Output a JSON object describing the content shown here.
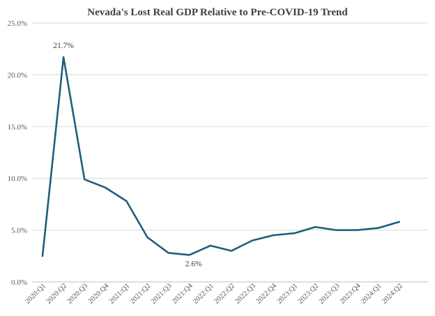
{
  "chart_data": {
    "type": "line",
    "title": "Nevada's Lost Real GDP Relative to Pre-COVID-19  Trend",
    "xlabel": "",
    "ylabel": "",
    "ylim": [
      0,
      25
    ],
    "yticks": [
      0,
      5,
      10,
      15,
      20,
      25
    ],
    "ytick_labels": [
      "0.0%",
      "5.0%",
      "10.0%",
      "15.0%",
      "20.0%",
      "25.0%"
    ],
    "grid": true,
    "legend": "none",
    "categories": [
      "2020:Q1",
      "2020:Q2",
      "2020:Q3",
      "2020:Q4",
      "2021:Q1",
      "2021:Q2",
      "2021:Q3",
      "2021:Q4",
      "2022:Q1",
      "2022:Q2",
      "2022:Q3",
      "2022:Q4",
      "2023:Q1",
      "2023:Q2",
      "2023:Q3",
      "2023:Q4",
      "2024:Q1",
      "2024:Q2"
    ],
    "series": [
      {
        "color": "#1f5f7a",
        "values": [
          2.5,
          21.7,
          9.9,
          9.1,
          7.8,
          4.3,
          2.8,
          2.6,
          3.5,
          3.0,
          4.0,
          4.5,
          4.7,
          5.3,
          5.0,
          5.0,
          5.2,
          5.8
        ]
      }
    ],
    "data_labels": [
      {
        "index": 1,
        "text": "21.7%"
      },
      {
        "index": 7,
        "text": "2.6%"
      }
    ]
  }
}
